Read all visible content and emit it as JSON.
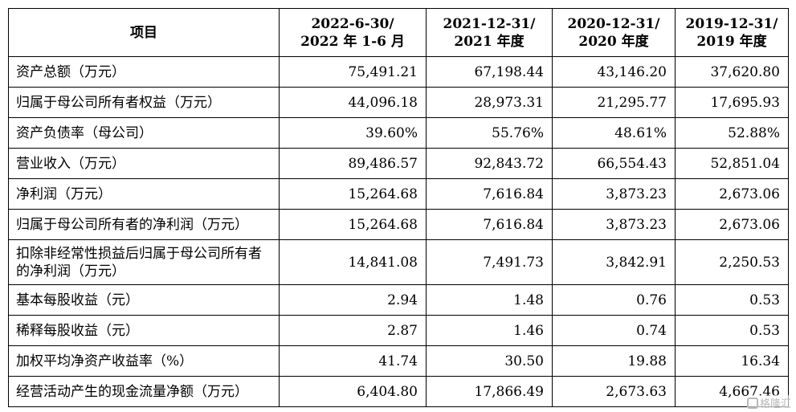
{
  "header": {
    "item": "项目",
    "periods": [
      {
        "line1": "2022-6-30/",
        "line2": "2022 年 1-6 月"
      },
      {
        "line1": "2021-12-31/",
        "line2": "2021 年度"
      },
      {
        "line1": "2020-12-31/",
        "line2": "2020 年度"
      },
      {
        "line1": "2019-12-31/",
        "line2": "2019 年度"
      }
    ]
  },
  "rows": [
    {
      "label": "资产总额（万元）",
      "values": [
        "75,491.21",
        "67,198.44",
        "43,146.20",
        "37,620.80"
      ]
    },
    {
      "label": "归属于母公司所有者权益（万元）",
      "values": [
        "44,096.18",
        "28,973.31",
        "21,295.77",
        "17,695.93"
      ]
    },
    {
      "label": "资产负债率（母公司）",
      "values": [
        "39.60%",
        "55.76%",
        "48.61%",
        "52.88%"
      ]
    },
    {
      "label": "营业收入（万元）",
      "values": [
        "89,486.57",
        "92,843.72",
        "66,554.43",
        "52,851.04"
      ]
    },
    {
      "label": "净利润（万元）",
      "values": [
        "15,264.68",
        "7,616.84",
        "3,873.23",
        "2,673.06"
      ]
    },
    {
      "label": "归属于母公司所有者的净利润（万元）",
      "values": [
        "15,264.68",
        "7,616.84",
        "3,873.23",
        "2,673.06"
      ]
    },
    {
      "label": "扣除非经常性损益后归属于母公司所有者的净利润（万元）",
      "values": [
        "14,841.08",
        "7,491.73",
        "3,842.91",
        "2,250.53"
      ]
    },
    {
      "label": "基本每股收益（元）",
      "values": [
        "2.94",
        "1.48",
        "0.76",
        "0.53"
      ]
    },
    {
      "label": "稀释每股收益（元）",
      "values": [
        "2.87",
        "1.46",
        "0.74",
        "0.53"
      ]
    },
    {
      "label": "加权平均净资产收益率（%）",
      "values": [
        "41.74",
        "30.50",
        "19.88",
        "16.34"
      ]
    },
    {
      "label": "经营活动产生的现金流量净额（万元）",
      "values": [
        "6,404.80",
        "17,866.49",
        "2,673.63",
        "4,667.46"
      ]
    }
  ],
  "watermark": {
    "text": "格隆汇",
    "icon": "gelonghui-logo-icon"
  }
}
